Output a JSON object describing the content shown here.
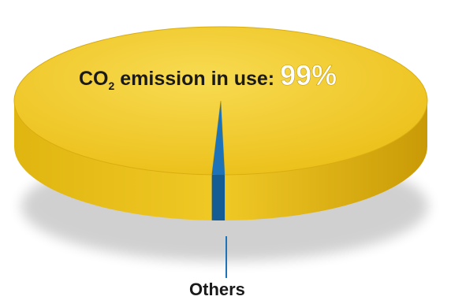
{
  "colors": {
    "main_top": "#f3cd2a",
    "main_side": "#d4a70c",
    "main_shadow": "#b58a05",
    "others": "#1e73b8",
    "others_dark": "#155c95",
    "label_dark": "#1a1a1a",
    "label_light": "#ffffff"
  },
  "chart_data": {
    "type": "pie",
    "style": "3d",
    "slices": [
      {
        "label": "CO2 emission in use",
        "value": 99
      },
      {
        "label": "Others",
        "value": 1
      }
    ],
    "annotations": {
      "main_prefix": "CO",
      "main_sub": "2",
      "main_suffix": " emission in use: ",
      "main_value": "99%",
      "others": "Others"
    }
  }
}
